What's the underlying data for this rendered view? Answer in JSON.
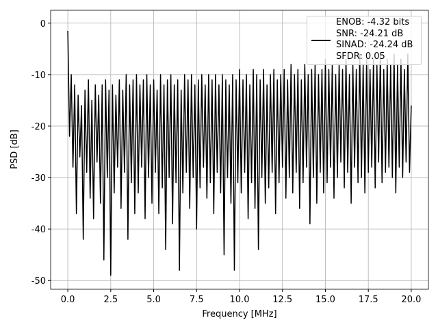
{
  "chart_data": {
    "type": "line",
    "xlabel": "Frequency [MHz]",
    "ylabel": "PSD [dB]",
    "xlim": [
      -1,
      21
    ],
    "ylim": [
      -51.7,
      2.5
    ],
    "xticks": [
      {
        "value": 0,
        "label": "0.0"
      },
      2.5,
      {
        "value": 5,
        "label": "5.0"
      },
      7.5,
      {
        "value": 10,
        "label": "10.0"
      },
      12.5,
      {
        "value": 15,
        "label": "15.0"
      },
      17.5,
      {
        "value": 20,
        "label": "20.0"
      }
    ],
    "yticks": [
      0,
      -10,
      -20,
      -30,
      -40,
      -50
    ],
    "grid": true,
    "legend": "upper right",
    "x": [
      0,
      0.1,
      0.2,
      0.3,
      0.4,
      0.5,
      0.6,
      0.7,
      0.8,
      0.9,
      1,
      1.1,
      1.2,
      1.3,
      1.4,
      1.5,
      1.6,
      1.7,
      1.8,
      1.9,
      2,
      2.1,
      2.2,
      2.3,
      2.4,
      2.5,
      2.6,
      2.7,
      2.8,
      2.9,
      3,
      3.1,
      3.2,
      3.3,
      3.4,
      3.5,
      3.6,
      3.7,
      3.8,
      3.9,
      4,
      4.1,
      4.2,
      4.3,
      4.4,
      4.5,
      4.6,
      4.7,
      4.8,
      4.9,
      5,
      5.1,
      5.2,
      5.3,
      5.4,
      5.5,
      5.6,
      5.7,
      5.8,
      5.9,
      6,
      6.1,
      6.2,
      6.3,
      6.4,
      6.5,
      6.6,
      6.7,
      6.8,
      6.9,
      7,
      7.1,
      7.2,
      7.3,
      7.4,
      7.5,
      7.6,
      7.7,
      7.8,
      7.9,
      8,
      8.1,
      8.2,
      8.3,
      8.4,
      8.5,
      8.6,
      8.7,
      8.8,
      8.9,
      9,
      9.1,
      9.2,
      9.3,
      9.4,
      9.5,
      9.6,
      9.7,
      9.8,
      9.9,
      10,
      10.1,
      10.2,
      10.3,
      10.4,
      10.5,
      10.6,
      10.7,
      10.8,
      10.9,
      11,
      11.1,
      11.2,
      11.3,
      11.4,
      11.5,
      11.6,
      11.7,
      11.8,
      11.9,
      12,
      12.1,
      12.2,
      12.3,
      12.4,
      12.5,
      12.6,
      12.7,
      12.8,
      12.9,
      13,
      13.1,
      13.2,
      13.3,
      13.4,
      13.5,
      13.6,
      13.7,
      13.8,
      13.9,
      14,
      14.1,
      14.2,
      14.3,
      14.4,
      14.5,
      14.6,
      14.7,
      14.8,
      14.9,
      15,
      15.1,
      15.2,
      15.3,
      15.4,
      15.5,
      15.6,
      15.7,
      15.8,
      15.9,
      16,
      16.1,
      16.2,
      16.3,
      16.4,
      16.5,
      16.6,
      16.7,
      16.8,
      16.9,
      17,
      17.1,
      17.2,
      17.3,
      17.4,
      17.5,
      17.6,
      17.7,
      17.8,
      17.9,
      18,
      18.1,
      18.2,
      18.3,
      18.4,
      18.5,
      18.6,
      18.7,
      18.8,
      18.9,
      19,
      19.1,
      19.2,
      19.3,
      19.4,
      19.5,
      19.6,
      19.7,
      19.8,
      19.9,
      20
    ],
    "series": [
      {
        "name": "ENOB: -4.32 bits\nSNR: -24.21 dB\nSINAD: -24.24 dB\nSFDR: 0.05",
        "color": "#000000",
        "values": [
          -1.5,
          -22,
          -10,
          -28,
          -12,
          -37,
          -14,
          -26,
          -16,
          -42,
          -13,
          -29,
          -11,
          -34,
          -15,
          -38,
          -12,
          -27,
          -14,
          -35,
          -12,
          -46,
          -11,
          -30,
          -13,
          -49,
          -12,
          -33,
          -14,
          -28,
          -11,
          -36,
          -13,
          -29,
          -10,
          -42,
          -12,
          -31,
          -11,
          -37,
          -10,
          -33,
          -12,
          -28,
          -11,
          -38,
          -10,
          -30,
          -12,
          -35,
          -11,
          -29,
          -13,
          -37,
          -10,
          -32,
          -12,
          -44,
          -11,
          -30,
          -10,
          -39,
          -12,
          -31,
          -11,
          -48,
          -13,
          -33,
          -10,
          -29,
          -11,
          -36,
          -10,
          -30,
          -12,
          -40,
          -11,
          -32,
          -10,
          -28,
          -12,
          -34,
          -10,
          -31,
          -11,
          -37,
          -10,
          -29,
          -12,
          -33,
          -10,
          -45,
          -11,
          -30,
          -12,
          -35,
          -10,
          -48,
          -11,
          -31,
          -9,
          -33,
          -11,
          -29,
          -10,
          -38,
          -12,
          -31,
          -9,
          -36,
          -10,
          -44,
          -11,
          -30,
          -9,
          -35,
          -12,
          -32,
          -10,
          -29,
          -9,
          -37,
          -11,
          -31,
          -10,
          -28,
          -9,
          -34,
          -11,
          -30,
          -8,
          -33,
          -10,
          -29,
          -9,
          -36,
          -11,
          -31,
          -8,
          -28,
          -10,
          -39,
          -9,
          -30,
          -8,
          -35,
          -10,
          -29,
          -9,
          -33,
          -7,
          -31,
          -9,
          -28,
          -8,
          -34,
          -10,
          -30,
          -8,
          -27,
          -9,
          -32,
          -7,
          -29,
          -10,
          -35,
          -8,
          -28,
          -9,
          -31,
          -6,
          -30,
          -8,
          -33,
          -7,
          -29,
          -9,
          -28,
          -7,
          -32,
          -8,
          -27,
          -6,
          -31,
          -9,
          -29,
          -7,
          -28,
          -8,
          -30,
          -6,
          -33,
          -8,
          -28,
          -7,
          -30,
          -9,
          -27,
          -6,
          -29,
          -16
        ]
      }
    ]
  }
}
